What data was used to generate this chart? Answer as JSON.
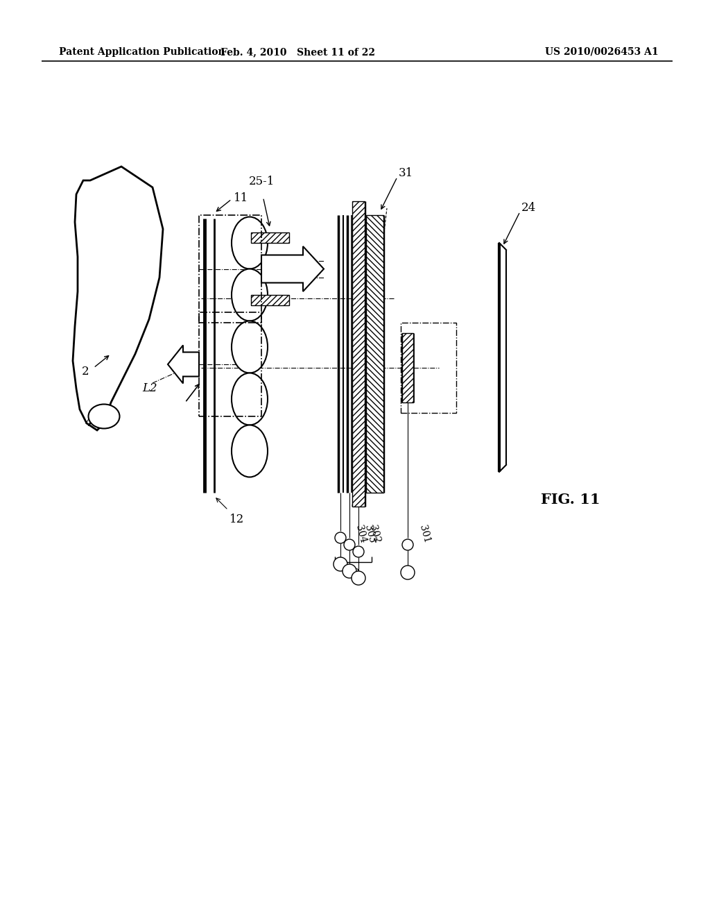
{
  "bg_color": "#ffffff",
  "header_left": "Patent Application Publication",
  "header_mid": "Feb. 4, 2010   Sheet 11 of 22",
  "header_right": "US 2010/0026453 A1",
  "fig_label": "FIG. 11"
}
